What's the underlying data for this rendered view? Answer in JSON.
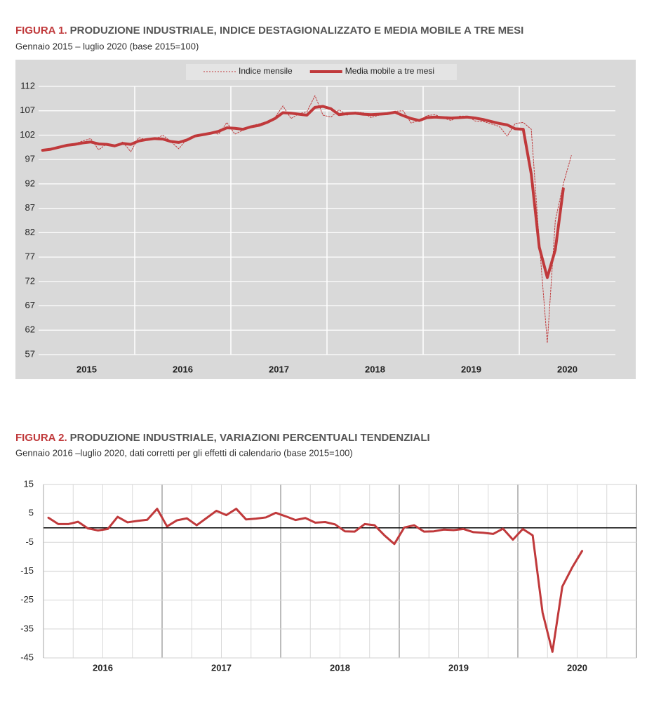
{
  "chart_data": [
    {
      "type": "line",
      "figure_label": "FIGURA 1.",
      "title": "PRODUZIONE INDUSTRIALE, INDICE DESTAGIONALIZZATO E MEDIA MOBILE A TRE MESI",
      "subtitle": "Gennaio 2015 – luglio 2020 (base 2015=100)",
      "year_labels": [
        "2015",
        "2016",
        "2017",
        "2018",
        "2019",
        "2020"
      ],
      "series": [
        {
          "name": "Indice mensile",
          "color": "#c0393b",
          "style": "dotted",
          "values": [
            98.7,
            99.2,
            99.6,
            99.9,
            100.2,
            100.8,
            101.3,
            99.0,
            100.2,
            99.6,
            100.6,
            98.6,
            101.5,
            101.0,
            101.1,
            102.0,
            100.7,
            99.2,
            101.2,
            101.6,
            102.3,
            102.5,
            102.2,
            104.6,
            102.2,
            103.0,
            103.9,
            104.3,
            104.8,
            105.6,
            108.0,
            105.4,
            106.4,
            106.8,
            110.1,
            106.1,
            105.7,
            107.2,
            106.1,
            106.7,
            106.6,
            105.6,
            106.1,
            106.3,
            106.9,
            107.0,
            104.5,
            105.0,
            106.0,
            106.2,
            105.5,
            105.0,
            105.9,
            105.9,
            104.9,
            104.8,
            104.3,
            103.8,
            101.8,
            104.4,
            104.6,
            103.2,
            80.0,
            59.4,
            84.5,
            92.0,
            97.8
          ]
        },
        {
          "name": "Media mobile a tre mesi",
          "color": "#c0393b",
          "style": "solid",
          "values": [
            98.9,
            99.1,
            99.5,
            99.9,
            100.1,
            100.4,
            100.6,
            100.2,
            100.1,
            99.8,
            100.3,
            100.1,
            100.8,
            101.1,
            101.3,
            101.2,
            100.7,
            100.5,
            101.0,
            101.8,
            102.1,
            102.4,
            102.8,
            103.5,
            103.4,
            103.2,
            103.7,
            104.0,
            104.6,
            105.4,
            106.6,
            106.5,
            106.3,
            106.1,
            107.7,
            107.9,
            107.4,
            106.2,
            106.4,
            106.5,
            106.3,
            106.2,
            106.3,
            106.4,
            106.7,
            106.0,
            105.4,
            105.0,
            105.6,
            105.7,
            105.6,
            105.5,
            105.6,
            105.7,
            105.5,
            105.2,
            104.8,
            104.4,
            104.1,
            103.3,
            103.2,
            94.0,
            79.0,
            72.8,
            78.5,
            91.0,
            null
          ]
        }
      ],
      "ylim": [
        57,
        112
      ],
      "yticks": [
        57,
        62,
        67,
        72,
        77,
        82,
        87,
        92,
        97,
        102,
        107,
        112
      ],
      "grid": true,
      "legend": "top"
    },
    {
      "type": "line",
      "figure_label": "FIGURA 2.",
      "title": "PRODUZIONE INDUSTRIALE, VARIAZIONI PERCENTUALI TENDENZIALI",
      "subtitle": "Gennaio 2016 –luglio 2020, dati corretti per gli effetti di calendario (base 2015=100)",
      "year_labels": [
        "2016",
        "2017",
        "2018",
        "2019",
        "2020"
      ],
      "series": [
        {
          "color": "#c0393b",
          "style": "solid",
          "values": [
            3.5,
            1.3,
            1.3,
            2.1,
            -0.2,
            -0.9,
            -0.4,
            3.8,
            1.9,
            2.4,
            2.8,
            6.6,
            0.5,
            2.6,
            3.3,
            0.9,
            3.4,
            5.9,
            4.4,
            6.6,
            2.9,
            3.2,
            3.6,
            5.2,
            4.0,
            2.7,
            3.4,
            1.8,
            2.0,
            1.2,
            -1.2,
            -1.3,
            1.3,
            0.9,
            -2.6,
            -5.6,
            0.1,
            0.9,
            -1.3,
            -1.2,
            -0.6,
            -0.8,
            -0.4,
            -1.5,
            -1.7,
            -2.1,
            -0.3,
            -4.1,
            -0.4,
            -2.6,
            -29.3,
            -42.9,
            -20.3,
            -13.7,
            -8.0
          ]
        }
      ],
      "ylim": [
        -45,
        15
      ],
      "yticks": [
        15,
        5,
        -5,
        -15,
        -25,
        -35,
        -45
      ],
      "baseline": 0,
      "grid": true
    }
  ]
}
